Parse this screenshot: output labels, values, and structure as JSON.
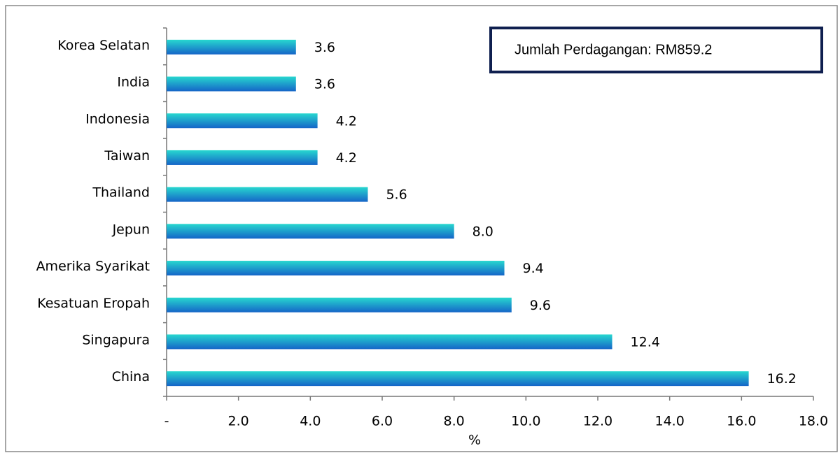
{
  "chart_data": {
    "type": "bar",
    "orientation": "horizontal",
    "categories": [
      "Korea Selatan",
      "India",
      "Indonesia",
      "Taiwan",
      "Thailand",
      "Jepun",
      "Amerika Syarikat",
      "Kesatuan Eropah",
      "Singapura",
      "China"
    ],
    "values": [
      3.6,
      3.6,
      4.2,
      4.2,
      5.6,
      8.0,
      9.4,
      9.6,
      12.4,
      16.2
    ],
    "value_labels": [
      "3.6",
      "3.6",
      "4.2",
      "4.2",
      "5.6",
      "8.0",
      "9.4",
      "9.6",
      "12.4",
      "16.2"
    ],
    "color": [
      "#27d7cf",
      "#1565c8"
    ],
    "xlim": [
      0,
      18
    ],
    "xticks": [
      {
        "value": 0,
        "label": "-"
      },
      {
        "value": 2,
        "label": "2.0"
      },
      {
        "value": 4,
        "label": "4.0"
      },
      {
        "value": 6,
        "label": "6.0"
      },
      {
        "value": 8,
        "label": "8.0"
      },
      {
        "value": 10,
        "label": "10.0"
      },
      {
        "value": 12,
        "label": "12.0"
      },
      {
        "value": 14,
        "label": "14.0"
      },
      {
        "value": 16,
        "label": "16.0"
      },
      {
        "value": 18,
        "label": "18.0"
      }
    ],
    "x_label": "%",
    "annotation": "Jumlah Perdagangan: RM859.2",
    "grid": false
  }
}
